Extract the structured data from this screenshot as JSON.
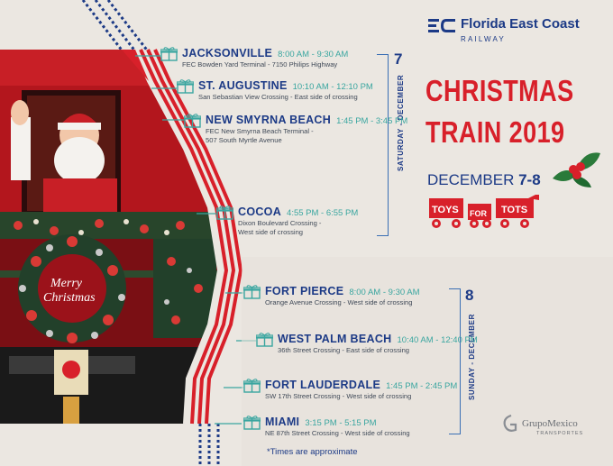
{
  "brand": {
    "name": "Florida East Coast",
    "sub": "RAILWAY"
  },
  "title": {
    "line1": "CHRISTMAS",
    "line2": "TRAIN 2019"
  },
  "dates": "DECEMBER ",
  "dates_bold": "7-8",
  "toys": {
    "w1": "TOYS",
    "w2": "FOR",
    "w3": "TOTS"
  },
  "days": [
    {
      "num": "7",
      "label": "SATURDAY - DECEMBER"
    },
    {
      "num": "8",
      "label": "SUNDAY - DECEMBER"
    }
  ],
  "stops": [
    {
      "name": "JACKSONVILLE",
      "time": "8:00 AM - 9:30 AM",
      "loc": "FEC Bowden Yard Terminal - 7150 Philips Highway"
    },
    {
      "name": "ST. AUGUSTINE",
      "time": "10:10 AM - 12:10 PM",
      "loc": "San Sebastian View Crossing - East side of crossing"
    },
    {
      "name": "NEW SMYRNA BEACH",
      "time": "1:45 PM - 3:45 PM",
      "loc": "FEC New Smyrna Beach Terminal - 507 South Myrtle Avenue"
    },
    {
      "name": "COCOA",
      "time": "4:55 PM - 6:55 PM",
      "loc": "Dixon Boulevard Crossing - West side of crossing"
    },
    {
      "name": "FORT PIERCE",
      "time": "8:00 AM - 9:30 AM",
      "loc": "Orange Avenue Crossing - West side of crossing"
    },
    {
      "name": "WEST PALM BEACH",
      "time": "10:40 AM - 12:40 PM",
      "loc": "36th Street Crossing - East side of crossing"
    },
    {
      "name": "FORT LAUDERDALE",
      "time": "1:45 PM - 2:45 PM",
      "loc": "SW 17th Street Crossing - West side of crossing"
    },
    {
      "name": "MIAMI",
      "time": "3:15 PM - 5:15 PM",
      "loc": "NE 87th Street Crossing - West side of crossing"
    }
  ],
  "note": "*Times are approximate",
  "wreath_text": {
    "l1": "Merry",
    "l2": "Christmas"
  },
  "grupo": {
    "name": "GrupoMexico",
    "sub": "TRANSPORTES"
  },
  "colors": {
    "navy": "#1c3a86",
    "red": "#d8202a",
    "teal": "#3aa6a0",
    "bg": "#ebe7e1"
  }
}
